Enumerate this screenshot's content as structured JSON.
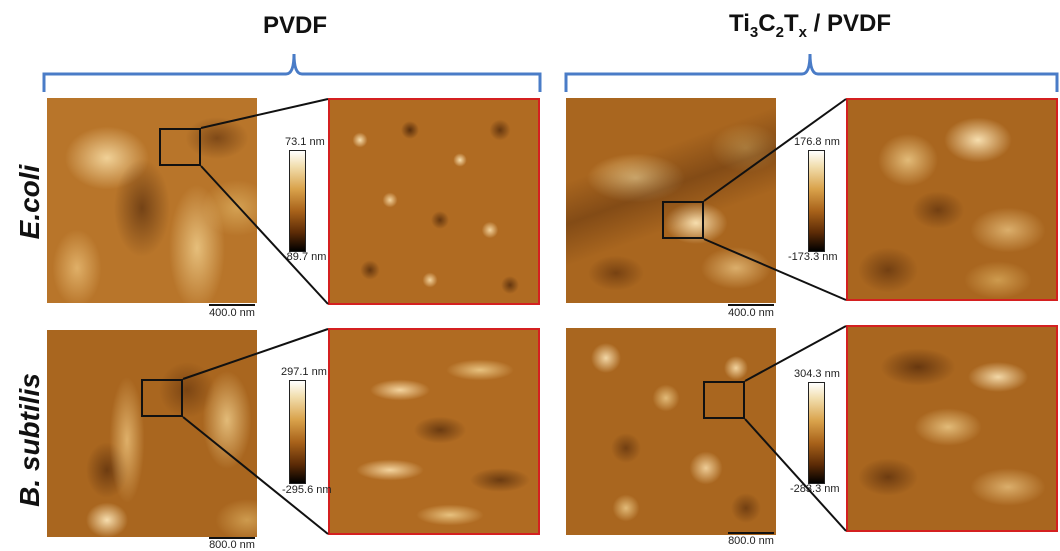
{
  "headers": {
    "left": "PVDF",
    "right_parts": [
      "Ti",
      "3",
      "C",
      "2",
      "T",
      "x",
      " / PVDF"
    ]
  },
  "rows": {
    "top": "E.coli",
    "bottom": "B. subtilis"
  },
  "colorbars": {
    "pvdf_ecoli": {
      "max": "73.1 nm",
      "min": "-89.7 nm"
    },
    "ti_ecoli": {
      "max": "176.8 nm",
      "min": "-173.3 nm"
    },
    "pvdf_bsub": {
      "max": "297.1 nm",
      "min": "-295.6 nm"
    },
    "ti_bsub": {
      "max": "304.3 nm",
      "min": "-283.3 nm"
    }
  },
  "scalebars": {
    "pvdf_ecoli": "400.0 nm",
    "ti_ecoli": "400.0 nm",
    "pvdf_bsub": "800.0 nm",
    "ti_bsub": "800.0 nm"
  },
  "colors": {
    "bracket": "#4a7cc7",
    "zoom_border": "#d42020",
    "afm_light": "#f6dfa6",
    "afm_mid": "#b9701f",
    "afm_dark": "#3c1a04"
  }
}
